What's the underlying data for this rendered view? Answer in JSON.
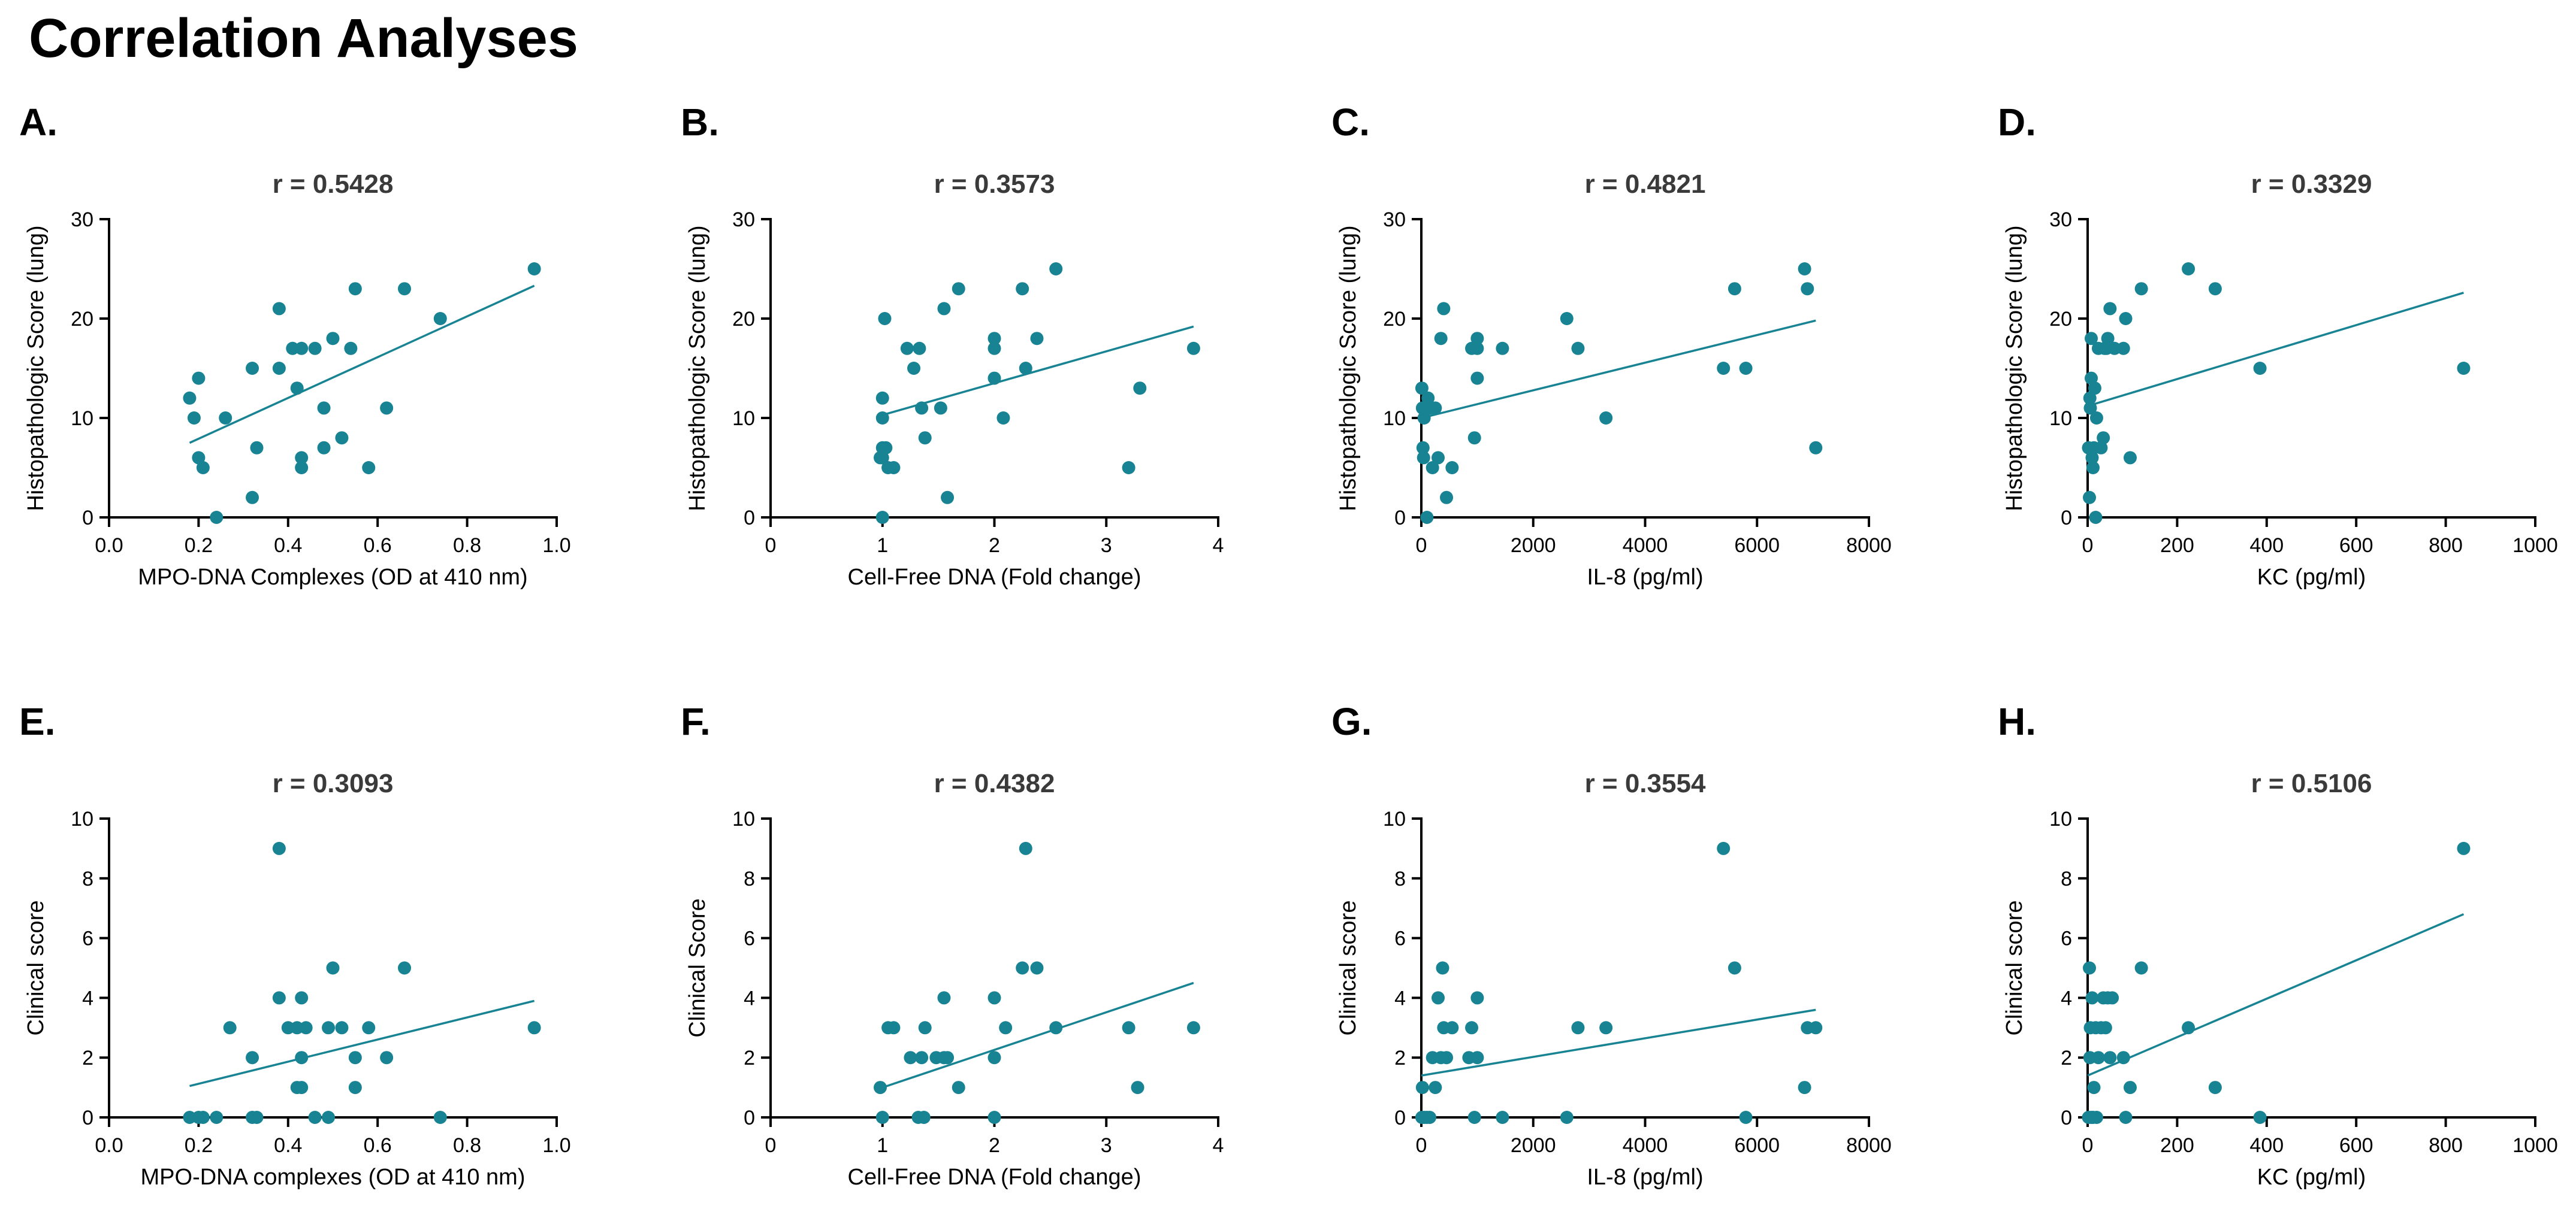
{
  "title": "Correlation Analyses",
  "colors": {
    "point": "#178393",
    "line": "#178393",
    "axis": "#000000",
    "r_text": "#3a3a3a"
  },
  "chart_data": [
    {
      "label": "A.",
      "type": "scatter",
      "r_label": "r = 0.5428",
      "xlabel": "MPO-DNA Complexes (OD at 410 nm)",
      "ylabel": "Histopathologic Score (lung)",
      "xlim": [
        0,
        1.0
      ],
      "ylim": [
        0,
        30
      ],
      "xticks": [
        "0.0",
        "0.2",
        "0.4",
        "0.6",
        "0.8",
        "1.0"
      ],
      "yticks": [
        "0",
        "10",
        "20",
        "30"
      ],
      "fit": {
        "x": [
          0.18,
          0.95
        ],
        "y": [
          7.5,
          23.3
        ]
      },
      "points": [
        [
          0.18,
          12
        ],
        [
          0.2,
          14
        ],
        [
          0.19,
          10
        ],
        [
          0.2,
          6
        ],
        [
          0.21,
          5
        ],
        [
          0.24,
          0
        ],
        [
          0.26,
          10
        ],
        [
          0.32,
          2
        ],
        [
          0.32,
          15
        ],
        [
          0.33,
          7
        ],
        [
          0.38,
          15
        ],
        [
          0.38,
          21
        ],
        [
          0.41,
          17
        ],
        [
          0.42,
          13
        ],
        [
          0.43,
          17
        ],
        [
          0.43,
          5
        ],
        [
          0.43,
          6
        ],
        [
          0.46,
          17
        ],
        [
          0.48,
          11
        ],
        [
          0.48,
          7
        ],
        [
          0.5,
          18
        ],
        [
          0.52,
          8
        ],
        [
          0.54,
          17
        ],
        [
          0.55,
          23
        ],
        [
          0.58,
          5
        ],
        [
          0.62,
          11
        ],
        [
          0.66,
          23
        ],
        [
          0.74,
          20
        ],
        [
          0.95,
          25
        ]
      ]
    },
    {
      "label": "B.",
      "type": "scatter",
      "r_label": "r = 0.3573",
      "xlabel": "Cell-Free DNA (Fold change)",
      "ylabel": "Histopathologic Score (lung)",
      "xlim": [
        0,
        4
      ],
      "ylim": [
        0,
        30
      ],
      "xticks": [
        "0",
        "1",
        "2",
        "3",
        "4"
      ],
      "yticks": [
        "0",
        "10",
        "20",
        "30"
      ],
      "fit": {
        "x": [
          1.0,
          3.78
        ],
        "y": [
          10.3,
          19.2
        ]
      },
      "points": [
        [
          0.98,
          6
        ],
        [
          1.0,
          7
        ],
        [
          1.0,
          12
        ],
        [
          1.0,
          10
        ],
        [
          1.02,
          20
        ],
        [
          1.03,
          7
        ],
        [
          1.05,
          5
        ],
        [
          1.1,
          5
        ],
        [
          1.0,
          0
        ],
        [
          1.0,
          6
        ],
        [
          1.22,
          17
        ],
        [
          1.28,
          15
        ],
        [
          1.33,
          17
        ],
        [
          1.35,
          11
        ],
        [
          1.38,
          8
        ],
        [
          1.52,
          11
        ],
        [
          1.55,
          21
        ],
        [
          1.58,
          2
        ],
        [
          1.68,
          23
        ],
        [
          2.0,
          18
        ],
        [
          2.0,
          17
        ],
        [
          2.0,
          14
        ],
        [
          2.08,
          10
        ],
        [
          2.25,
          23
        ],
        [
          2.28,
          15
        ],
        [
          2.38,
          18
        ],
        [
          2.55,
          25
        ],
        [
          3.2,
          5
        ],
        [
          3.3,
          13
        ],
        [
          3.78,
          17
        ]
      ]
    },
    {
      "label": "C.",
      "type": "scatter",
      "r_label": "r = 0.4821",
      "xlabel": "IL-8 (pg/ml)",
      "ylabel": "Histopathologic Score (lung)",
      "xlim": [
        0,
        8000
      ],
      "ylim": [
        0,
        30
      ],
      "xticks": [
        "0",
        "2000",
        "4000",
        "6000",
        "8000"
      ],
      "yticks": [
        "0",
        "10",
        "20",
        "30"
      ],
      "fit": {
        "x": [
          0,
          7050
        ],
        "y": [
          10.0,
          19.8
        ]
      },
      "points": [
        [
          10,
          13
        ],
        [
          20,
          11
        ],
        [
          30,
          7
        ],
        [
          40,
          6
        ],
        [
          50,
          10
        ],
        [
          100,
          0
        ],
        [
          120,
          12
        ],
        [
          150,
          11
        ],
        [
          200,
          5
        ],
        [
          250,
          11
        ],
        [
          300,
          6
        ],
        [
          350,
          18
        ],
        [
          400,
          21
        ],
        [
          450,
          2
        ],
        [
          550,
          5
        ],
        [
          900,
          17
        ],
        [
          950,
          8
        ],
        [
          1000,
          17
        ],
        [
          1000,
          18
        ],
        [
          1000,
          14
        ],
        [
          1450,
          17
        ],
        [
          2600,
          20
        ],
        [
          2800,
          17
        ],
        [
          3300,
          10
        ],
        [
          5400,
          15
        ],
        [
          5600,
          23
        ],
        [
          5800,
          15
        ],
        [
          6850,
          25
        ],
        [
          6900,
          23
        ],
        [
          7050,
          7
        ]
      ]
    },
    {
      "label": "D.",
      "type": "scatter",
      "r_label": "r = 0.3329",
      "xlabel": "KC (pg/ml)",
      "ylabel": "Histopathologic Score (lung)",
      "xlim": [
        0,
        1000
      ],
      "ylim": [
        0,
        30
      ],
      "xticks": [
        "0",
        "200",
        "400",
        "600",
        "800",
        "1000"
      ],
      "yticks": [
        "0",
        "10",
        "20",
        "30"
      ],
      "fit": {
        "x": [
          0,
          840
        ],
        "y": [
          11.2,
          22.6
        ]
      },
      "points": [
        [
          2,
          7
        ],
        [
          4,
          2
        ],
        [
          5,
          12
        ],
        [
          6,
          11
        ],
        [
          8,
          14
        ],
        [
          8,
          18
        ],
        [
          10,
          6
        ],
        [
          12,
          5
        ],
        [
          14,
          7
        ],
        [
          16,
          13
        ],
        [
          18,
          0
        ],
        [
          20,
          10
        ],
        [
          24,
          17
        ],
        [
          30,
          7
        ],
        [
          35,
          8
        ],
        [
          38,
          17
        ],
        [
          42,
          17
        ],
        [
          45,
          18
        ],
        [
          50,
          21
        ],
        [
          60,
          17
        ],
        [
          80,
          17
        ],
        [
          85,
          20
        ],
        [
          95,
          6
        ],
        [
          120,
          23
        ],
        [
          225,
          25
        ],
        [
          285,
          23
        ],
        [
          385,
          15
        ],
        [
          840,
          15
        ]
      ]
    },
    {
      "label": "E.",
      "type": "scatter",
      "r_label": "r = 0.3093",
      "xlabel": "MPO-DNA complexes (OD at 410 nm)",
      "ylabel": "Clinical score",
      "xlim": [
        0,
        1.0
      ],
      "ylim": [
        0,
        10
      ],
      "xticks": [
        "0.0",
        "0.2",
        "0.4",
        "0.6",
        "0.8",
        "1.0"
      ],
      "yticks": [
        "0",
        "2",
        "4",
        "6",
        "8",
        "10"
      ],
      "fit": {
        "x": [
          0.18,
          0.95
        ],
        "y": [
          1.05,
          3.9
        ]
      },
      "points": [
        [
          0.18,
          0
        ],
        [
          0.2,
          0
        ],
        [
          0.21,
          0
        ],
        [
          0.24,
          0
        ],
        [
          0.27,
          3
        ],
        [
          0.32,
          2
        ],
        [
          0.32,
          0
        ],
        [
          0.33,
          0
        ],
        [
          0.38,
          4
        ],
        [
          0.38,
          9
        ],
        [
          0.4,
          3
        ],
        [
          0.42,
          3
        ],
        [
          0.42,
          1
        ],
        [
          0.43,
          1
        ],
        [
          0.43,
          2
        ],
        [
          0.43,
          4
        ],
        [
          0.44,
          3
        ],
        [
          0.46,
          0
        ],
        [
          0.49,
          0
        ],
        [
          0.49,
          3
        ],
        [
          0.5,
          5
        ],
        [
          0.52,
          3
        ],
        [
          0.55,
          2
        ],
        [
          0.55,
          1
        ],
        [
          0.58,
          3
        ],
        [
          0.62,
          2
        ],
        [
          0.66,
          5
        ],
        [
          0.74,
          0
        ],
        [
          0.95,
          3
        ]
      ]
    },
    {
      "label": "F.",
      "type": "scatter",
      "r_label": "r = 0.4382",
      "xlabel": "Cell-Free DNA (Fold change)",
      "ylabel": "Clinical Score",
      "xlim": [
        0,
        4
      ],
      "ylim": [
        0,
        10
      ],
      "xticks": [
        "0",
        "1",
        "2",
        "3",
        "4"
      ],
      "yticks": [
        "0",
        "2",
        "4",
        "6",
        "8",
        "10"
      ],
      "fit": {
        "x": [
          1.0,
          3.78
        ],
        "y": [
          1.0,
          4.5
        ]
      },
      "points": [
        [
          0.98,
          1
        ],
        [
          1.0,
          0
        ],
        [
          1.05,
          3
        ],
        [
          1.1,
          3
        ],
        [
          1.25,
          2
        ],
        [
          1.32,
          0
        ],
        [
          1.35,
          2
        ],
        [
          1.37,
          0
        ],
        [
          1.38,
          3
        ],
        [
          1.48,
          2
        ],
        [
          1.55,
          4
        ],
        [
          1.55,
          2
        ],
        [
          1.58,
          2
        ],
        [
          1.68,
          1
        ],
        [
          2.0,
          4
        ],
        [
          2.0,
          0
        ],
        [
          2.0,
          2
        ],
        [
          2.1,
          3
        ],
        [
          2.25,
          5
        ],
        [
          2.28,
          9
        ],
        [
          2.38,
          5
        ],
        [
          2.55,
          3
        ],
        [
          3.2,
          3
        ],
        [
          3.28,
          1
        ],
        [
          3.78,
          3
        ]
      ]
    },
    {
      "label": "G.",
      "type": "scatter",
      "r_label": "r = 0.3554",
      "xlabel": "IL-8 (pg/ml)",
      "ylabel": "Clinical score",
      "xlim": [
        0,
        8000
      ],
      "ylim": [
        0,
        10
      ],
      "xticks": [
        "0",
        "2000",
        "4000",
        "6000",
        "8000"
      ],
      "yticks": [
        "0",
        "2",
        "4",
        "6",
        "8",
        "10"
      ],
      "fit": {
        "x": [
          0,
          7050
        ],
        "y": [
          1.4,
          3.6
        ]
      },
      "points": [
        [
          10,
          0
        ],
        [
          20,
          1
        ],
        [
          50,
          0
        ],
        [
          100,
          0
        ],
        [
          150,
          0
        ],
        [
          200,
          2
        ],
        [
          250,
          1
        ],
        [
          300,
          4
        ],
        [
          350,
          2
        ],
        [
          380,
          5
        ],
        [
          400,
          3
        ],
        [
          450,
          2
        ],
        [
          550,
          3
        ],
        [
          850,
          2
        ],
        [
          900,
          3
        ],
        [
          950,
          0
        ],
        [
          1000,
          2
        ],
        [
          1000,
          4
        ],
        [
          1450,
          0
        ],
        [
          2600,
          0
        ],
        [
          2800,
          3
        ],
        [
          3300,
          3
        ],
        [
          5400,
          9
        ],
        [
          5600,
          5
        ],
        [
          5800,
          0
        ],
        [
          6850,
          1
        ],
        [
          6900,
          3
        ],
        [
          7050,
          3
        ]
      ]
    },
    {
      "label": "H.",
      "type": "scatter",
      "r_label": "r = 0.5106",
      "xlabel": "KC (pg/ml)",
      "ylabel": "Clinical score",
      "xlim": [
        0,
        1000
      ],
      "ylim": [
        0,
        10
      ],
      "xticks": [
        "0",
        "200",
        "400",
        "600",
        "800",
        "1000"
      ],
      "yticks": [
        "0",
        "2",
        "4",
        "6",
        "8",
        "10"
      ],
      "fit": {
        "x": [
          0,
          840
        ],
        "y": [
          1.4,
          6.8
        ]
      },
      "points": [
        [
          2,
          0
        ],
        [
          4,
          5
        ],
        [
          5,
          2
        ],
        [
          6,
          3
        ],
        [
          8,
          0
        ],
        [
          10,
          4
        ],
        [
          12,
          0
        ],
        [
          14,
          1
        ],
        [
          18,
          3
        ],
        [
          20,
          0
        ],
        [
          24,
          2
        ],
        [
          30,
          3
        ],
        [
          35,
          4
        ],
        [
          40,
          3
        ],
        [
          45,
          4
        ],
        [
          50,
          2
        ],
        [
          55,
          4
        ],
        [
          80,
          2
        ],
        [
          85,
          0
        ],
        [
          95,
          1
        ],
        [
          120,
          5
        ],
        [
          225,
          3
        ],
        [
          285,
          1
        ],
        [
          385,
          0
        ],
        [
          840,
          9
        ]
      ]
    }
  ]
}
